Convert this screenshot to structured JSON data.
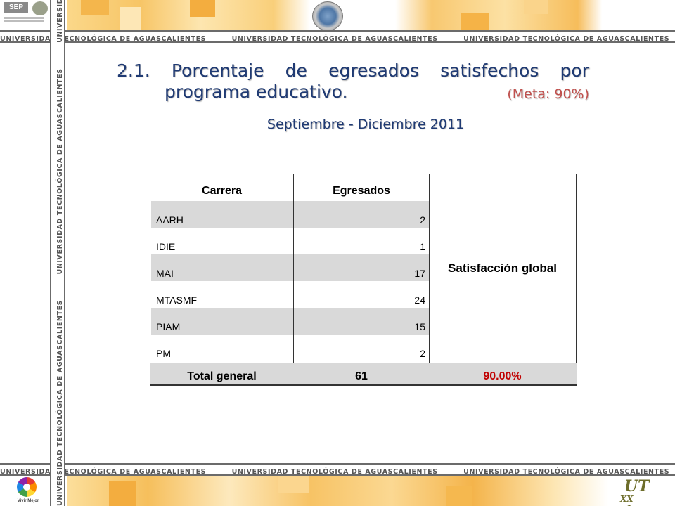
{
  "header": {
    "banner_text": "UNIVERSIDAD TECNOLÓGICA DE AGUASCALIENTES",
    "sep_label": "SEP",
    "sep_lines": [
      "SECRETARÍA DE",
      "EDUCACIÓN PÚBLICA"
    ]
  },
  "title": {
    "line1_words": [
      "2.1.",
      "Porcentaje",
      "de",
      "egresados",
      "satisfechos",
      "por"
    ],
    "line2": "programa educativo.",
    "meta": "(Meta: 90%)",
    "period": "Septiembre - Diciembre 2011"
  },
  "table": {
    "headers": [
      "Carrera",
      "Egresados",
      "Satisfacción global"
    ],
    "rows": [
      {
        "carrera": "AARH",
        "egresados": "2"
      },
      {
        "carrera": "IDIE",
        "egresados": "1"
      },
      {
        "carrera": "MAI",
        "egresados": "17"
      },
      {
        "carrera": "MTASMF",
        "egresados": "24"
      },
      {
        "carrera": "PIAM",
        "egresados": "15"
      },
      {
        "carrera": "PM",
        "egresados": "2"
      }
    ],
    "total": {
      "label": "Total general",
      "egresados": "61",
      "satisfaccion": "90.00%"
    }
  },
  "footer": {
    "vivir_label": "Vivir Mejor",
    "ut_mark": "UT",
    "ut_xx": "XX años"
  },
  "colors": {
    "title": "#1f3a73",
    "meta": "#c0504d",
    "total_pct": "#c00000",
    "row_shade": "#d9d9d9",
    "band_orange": "#f7c566"
  }
}
